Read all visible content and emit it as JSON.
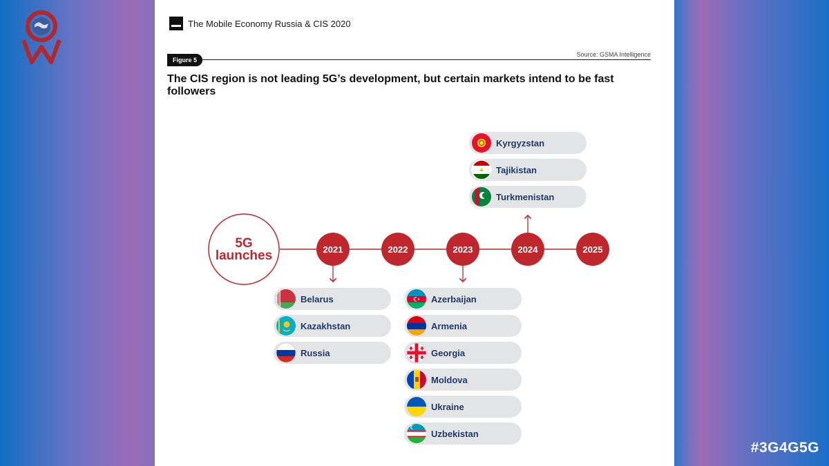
{
  "header": {
    "title": "The Mobile Economy Russia & CIS 2020"
  },
  "figure": {
    "tag": "Figure 5",
    "source": "Source: GSMA Intelligence",
    "headline": "The CIS region is not leading 5G’s development, but certain markets intend to be fast followers"
  },
  "timeline": {
    "start_label_line1": "5G",
    "start_label_line2": "launches",
    "years": [
      "2021",
      "2022",
      "2023",
      "2024",
      "2025"
    ],
    "groups": [
      {
        "year": "2021",
        "countries": [
          "Belarus",
          "Kazakhstan",
          "Russia"
        ]
      },
      {
        "year": "2023",
        "countries": [
          "Azerbaijan",
          "Armenia",
          "Georgia",
          "Moldova",
          "Ukraine",
          "Uzbekistan"
        ]
      },
      {
        "year": "2024",
        "countries": [
          "Kyrgyzstan",
          "Tajikistan",
          "Turkmenistan"
        ]
      }
    ]
  },
  "colors": {
    "accent": "#c0272d",
    "pill": "#e3e4e6",
    "label": "#1d3a6b"
  },
  "hashtag": "#3G4G5G"
}
